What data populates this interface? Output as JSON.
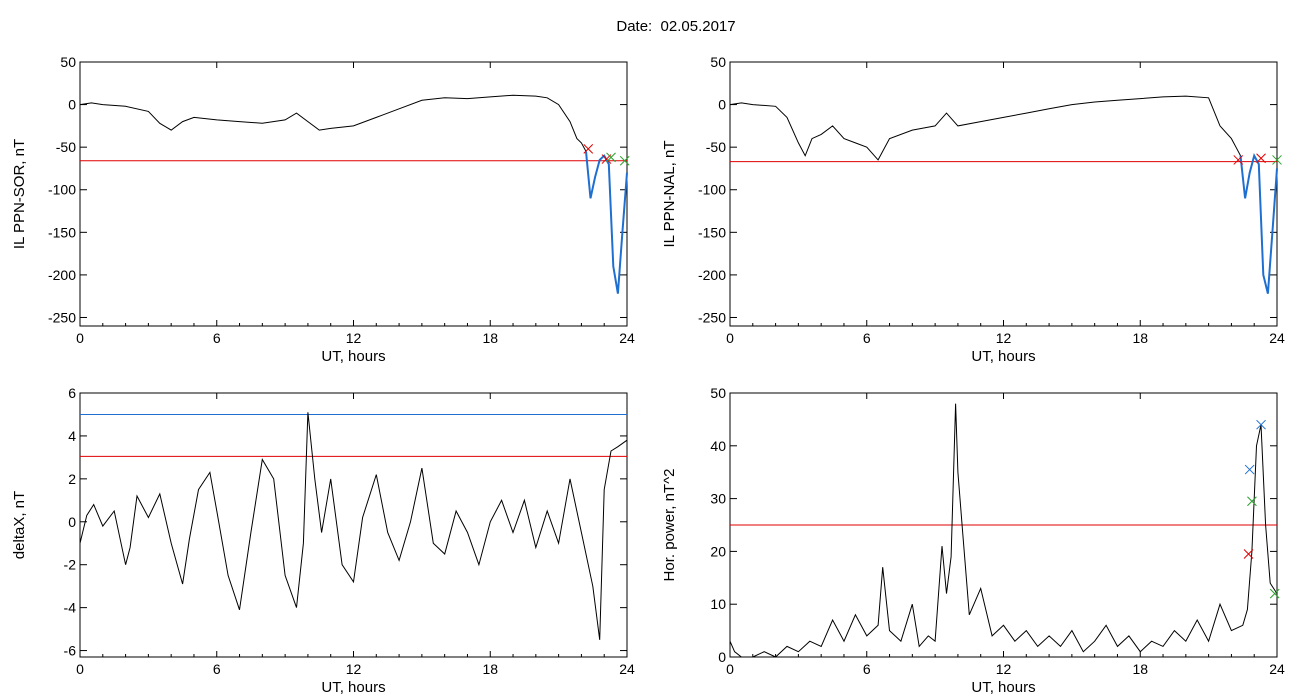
{
  "figure": {
    "title": "Date:  02.05.2017"
  },
  "colors": {
    "line": "#000000",
    "threshold_red": "#e00000",
    "threshold_blue": "#1f6fd0",
    "marker_red": "#e00000",
    "marker_green": "#2ca02c",
    "marker_blue": "#1f6fd0"
  },
  "chart_data": [
    {
      "type": "line",
      "xlabel": "UT, hours",
      "ylabel": "IL PPN-SOR, nT",
      "xlim": [
        0,
        24
      ],
      "ylim": [
        -260,
        50
      ],
      "xticks": [
        0,
        6,
        12,
        18,
        24
      ],
      "yticks": [
        50,
        0,
        -50,
        -100,
        -150,
        -200,
        -250
      ],
      "series": [
        {
          "x": [
            0,
            0.5,
            1,
            2,
            3,
            3.5,
            4,
            4.5,
            5,
            6,
            7,
            8,
            9,
            9.5,
            10,
            10.5,
            11,
            12,
            13,
            14,
            15,
            16,
            17,
            18,
            19,
            20,
            20.5,
            21,
            21.5,
            21.8,
            22,
            22.2,
            22.4,
            22.6,
            22.8,
            23,
            23.2,
            23.4,
            23.6,
            23.8,
            24
          ],
          "y": [
            0,
            2,
            0,
            -2,
            -8,
            -22,
            -30,
            -20,
            -15,
            -18,
            -20,
            -22,
            -18,
            -10,
            -20,
            -30,
            -28,
            -25,
            -15,
            -5,
            5,
            8,
            7,
            9,
            11,
            10,
            8,
            0,
            -20,
            -40,
            -45,
            -55,
            -110,
            -85,
            -65,
            -60,
            -70,
            -190,
            -222,
            -150,
            -80
          ]
        }
      ],
      "highlight": {
        "x_from": 22.2,
        "color": "#1f6fd0"
      },
      "thresholds": [
        {
          "y": -66,
          "color": "#e00000"
        }
      ],
      "markers": [
        {
          "x": 22.3,
          "y": -52,
          "color": "#e00000"
        },
        {
          "x": 23.1,
          "y": -64,
          "color": "#e00000"
        },
        {
          "x": 23.3,
          "y": -62,
          "color": "#2ca02c"
        },
        {
          "x": 23.9,
          "y": -66,
          "color": "#2ca02c"
        }
      ]
    },
    {
      "type": "line",
      "xlabel": "UT, hours",
      "ylabel": "IL PPN-NAL, nT",
      "xlim": [
        0,
        24
      ],
      "ylim": [
        -260,
        50
      ],
      "xticks": [
        0,
        6,
        12,
        18,
        24
      ],
      "yticks": [
        50,
        0,
        -50,
        -100,
        -150,
        -200,
        -250
      ],
      "series": [
        {
          "x": [
            0,
            0.5,
            1,
            2,
            2.5,
            3,
            3.3,
            3.6,
            4,
            4.5,
            5,
            5.5,
            6,
            6.5,
            7,
            8,
            9,
            9.5,
            10,
            11,
            12,
            13,
            14,
            15,
            16,
            17,
            18,
            19,
            20,
            21,
            21.5,
            22,
            22.2,
            22.4,
            22.6,
            22.8,
            23,
            23.2,
            23.4,
            23.6,
            23.8,
            24
          ],
          "y": [
            0,
            2,
            0,
            -2,
            -15,
            -45,
            -60,
            -40,
            -35,
            -25,
            -40,
            -45,
            -50,
            -65,
            -40,
            -30,
            -25,
            -10,
            -25,
            -20,
            -15,
            -10,
            -5,
            0,
            3,
            5,
            7,
            9,
            10,
            8,
            -25,
            -40,
            -50,
            -60,
            -110,
            -80,
            -60,
            -70,
            -200,
            -222,
            -150,
            -75
          ]
        }
      ],
      "highlight": {
        "x_from": 22.3,
        "color": "#1f6fd0"
      },
      "thresholds": [
        {
          "y": -67,
          "color": "#e00000"
        }
      ],
      "markers": [
        {
          "x": 22.3,
          "y": -65,
          "color": "#e00000"
        },
        {
          "x": 23.3,
          "y": -63,
          "color": "#e00000"
        },
        {
          "x": 24.0,
          "y": -65,
          "color": "#2ca02c"
        }
      ]
    },
    {
      "type": "line",
      "xlabel": "UT, hours",
      "ylabel": "deltaX, nT",
      "xlim": [
        0,
        24
      ],
      "ylim": [
        -6.3,
        6
      ],
      "xticks": [
        0,
        6,
        12,
        18,
        24
      ],
      "yticks": [
        6,
        4,
        2,
        0,
        -2,
        -4,
        -6
      ],
      "series": [
        {
          "x": [
            0,
            0.3,
            0.6,
            1,
            1.5,
            2,
            2.2,
            2.5,
            3,
            3.5,
            4,
            4.5,
            4.8,
            5.2,
            5.7,
            6,
            6.5,
            7,
            7.5,
            8,
            8.5,
            9,
            9.5,
            9.8,
            10,
            10.3,
            10.6,
            11,
            11.5,
            12,
            12.4,
            13,
            13.5,
            14,
            14.5,
            15,
            15.5,
            16,
            16.5,
            17,
            17.5,
            18,
            18.5,
            19,
            19.5,
            20,
            20.5,
            21,
            21.5,
            22,
            22.5,
            22.8,
            23,
            23.3,
            23.6,
            24
          ],
          "y": [
            -1,
            0.3,
            0.8,
            -0.2,
            0.5,
            -2,
            -1.2,
            1.2,
            0.2,
            1.3,
            -1,
            -2.9,
            -0.8,
            1.5,
            2.3,
            0.5,
            -2.5,
            -4.1,
            -0.5,
            2.9,
            2,
            -2.5,
            -4,
            -1,
            5.1,
            2,
            -0.5,
            2,
            -2,
            -2.8,
            0.2,
            2.2,
            -0.5,
            -1.8,
            0,
            2.5,
            -1,
            -1.5,
            0.5,
            -0.5,
            -2,
            0,
            1,
            -0.5,
            1,
            -1.2,
            0.5,
            -1,
            2,
            -0.5,
            -3,
            -5.5,
            1.5,
            3.3,
            3.5,
            3.8
          ]
        }
      ],
      "thresholds": [
        {
          "y": 5.0,
          "color": "#1f6fd0"
        },
        {
          "y": 3.05,
          "color": "#e00000"
        }
      ],
      "markers": []
    },
    {
      "type": "line",
      "xlabel": "UT, hours",
      "ylabel": "Hor. power, nT^2",
      "xlim": [
        0,
        24
      ],
      "ylim": [
        0,
        50
      ],
      "xticks": [
        0,
        6,
        12,
        18,
        24
      ],
      "yticks": [
        50,
        40,
        30,
        20,
        10,
        0
      ],
      "series": [
        {
          "x": [
            0,
            0.2,
            0.5,
            1,
            1.5,
            2,
            2.5,
            3,
            3.5,
            4,
            4.5,
            5,
            5.5,
            6,
            6.5,
            6.7,
            7,
            7.5,
            8,
            8.3,
            8.7,
            9,
            9.3,
            9.5,
            9.7,
            9.9,
            10,
            10.2,
            10.5,
            11,
            11.5,
            12,
            12.5,
            13,
            13.5,
            14,
            14.5,
            15,
            15.5,
            16,
            16.5,
            17,
            17.5,
            18,
            18.5,
            19,
            19.5,
            20,
            20.5,
            21,
            21.5,
            22,
            22.5,
            22.7,
            22.9,
            23.1,
            23.3,
            23.5,
            23.7,
            24
          ],
          "y": [
            3,
            1,
            0,
            0,
            1,
            0,
            2,
            1,
            3,
            2,
            7,
            3,
            8,
            4,
            6,
            17,
            5,
            3,
            10,
            2,
            4,
            3,
            21,
            12,
            19,
            48,
            35,
            24,
            8,
            13,
            4,
            6,
            3,
            5,
            2,
            4,
            2,
            5,
            1,
            3,
            6,
            2,
            4,
            1,
            3,
            2,
            5,
            3,
            7,
            3,
            10,
            5,
            6,
            9,
            20,
            40,
            44,
            25,
            14,
            12
          ]
        }
      ],
      "thresholds": [
        {
          "y": 25,
          "color": "#e00000"
        }
      ],
      "markers": [
        {
          "x": 22.8,
          "y": 35.5,
          "color": "#1f6fd0"
        },
        {
          "x": 23.3,
          "y": 44,
          "color": "#1f6fd0"
        },
        {
          "x": 22.9,
          "y": 29.5,
          "color": "#2ca02c"
        },
        {
          "x": 22.75,
          "y": 19.5,
          "color": "#e00000"
        },
        {
          "x": 23.9,
          "y": 12,
          "color": "#2ca02c"
        }
      ]
    }
  ]
}
